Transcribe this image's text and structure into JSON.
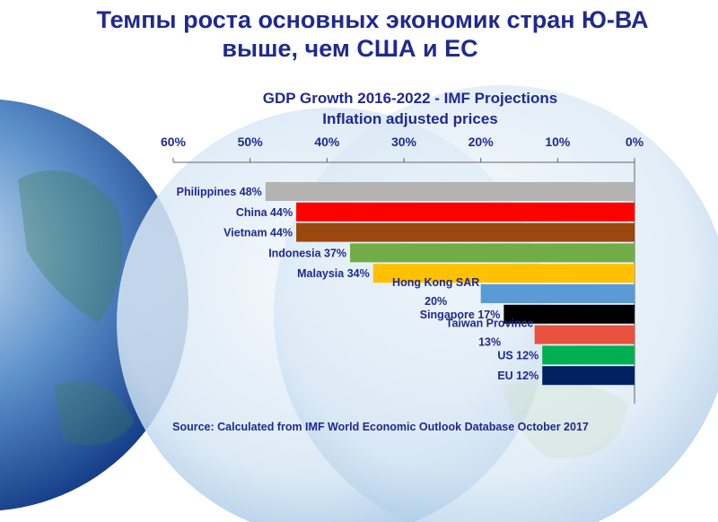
{
  "slide": {
    "title_line1": "Темпы роста основных экономик стран Ю-ВА",
    "title_line2": "выше, чем США и ЕС"
  },
  "colors": {
    "title": "#1f2a8f",
    "globe": "#5b8fc9"
  },
  "chart_data": {
    "type": "bar",
    "orientation": "horizontal-reversed",
    "title": "GDP Growth 2016-2022 - IMF Projections",
    "subtitle": "Inflation adjusted prices",
    "source": "Source: Calculated from IMF World Economic Outlook Database October 2017",
    "xlim": [
      0,
      60
    ],
    "ticks": [
      "60%",
      "50%",
      "40%",
      "30%",
      "20%",
      "10%",
      "0%"
    ],
    "grid": false,
    "categories": [
      {
        "label": "Philippines 48%",
        "value": 48,
        "color": "#b3b3b3"
      },
      {
        "label": "China 44%",
        "value": 44,
        "color": "#ff0000"
      },
      {
        "label": "Vietnam 44%",
        "value": 44,
        "color": "#9b4710"
      },
      {
        "label": "Indonesia 37%",
        "value": 37,
        "color": "#70ad47"
      },
      {
        "label": "Malaysia 34%",
        "value": 34,
        "color": "#ffc000"
      },
      {
        "label": "Hong Kong SAR 20%",
        "value": 20,
        "color": "#5b9bd5"
      },
      {
        "label": "Singapore 17%",
        "value": 17,
        "color": "#000000"
      },
      {
        "label": "Taiwan Province 13%",
        "value": 13,
        "color": "#e8533f"
      },
      {
        "label": "US 12%",
        "value": 12,
        "color": "#00b050"
      },
      {
        "label": "EU 12%",
        "value": 12,
        "color": "#002060"
      }
    ]
  }
}
